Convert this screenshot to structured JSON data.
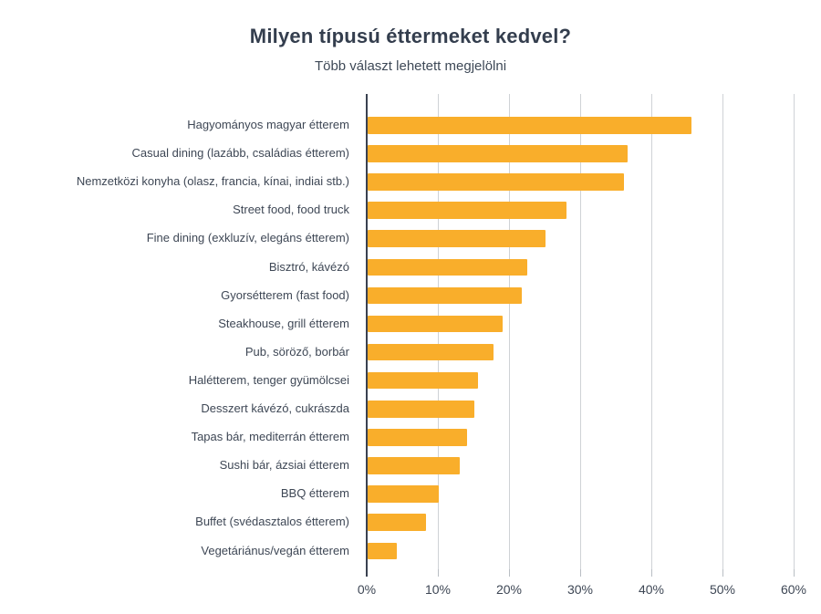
{
  "header": {
    "title": "Milyen típusú éttermeket kedvel?",
    "subtitle": "Több választ lehetett megjelölni"
  },
  "chart_data": {
    "type": "bar",
    "orientation": "horizontal",
    "title": "Milyen típusú éttermeket kedvel?",
    "subtitle": "Több választ lehetett megjelölni",
    "categories": [
      "Hagyományos magyar étterem",
      "Casual dining (lazább, családias étterem)",
      "Nemzetközi konyha (olasz, francia, kínai, indiai stb.)",
      "Street food, food truck",
      "Fine dining (exkluzív, elegáns étterem)",
      "Bisztró, kávézó",
      "Gyorsétterem (fast food)",
      "Steakhouse, grill étterem",
      "Pub, söröző, borbár",
      "Halétterem, tenger gyümölcsei",
      "Desszert kávézó, cukrászda",
      "Tapas bár, mediterrán étterem",
      "Sushi bár, ázsiai étterem",
      "BBQ étterem",
      "Buffet (svédasztalos étterem)",
      "Vegetáriánus/vegán étterem"
    ],
    "values": [
      45.5,
      36.5,
      36,
      28,
      25,
      22.4,
      21.7,
      19,
      17.7,
      15.5,
      15,
      14,
      13,
      10,
      8.2,
      4.1
    ],
    "xlabel": "",
    "ylabel": "",
    "x_ticks": [
      "0%",
      "10%",
      "20%",
      "30%",
      "40%",
      "50%",
      "60%"
    ],
    "x_tick_values": [
      0,
      10,
      20,
      30,
      40,
      50,
      60
    ],
    "xlim": [
      0,
      60
    ],
    "grid": true,
    "legend": "none",
    "colors": {
      "bar": "#F9AE2B",
      "gridline": "#CFD2D6",
      "tick": "#B9BEC4",
      "axis": "#3A4150",
      "text": "#3E4755",
      "title": "#343E4E"
    }
  }
}
